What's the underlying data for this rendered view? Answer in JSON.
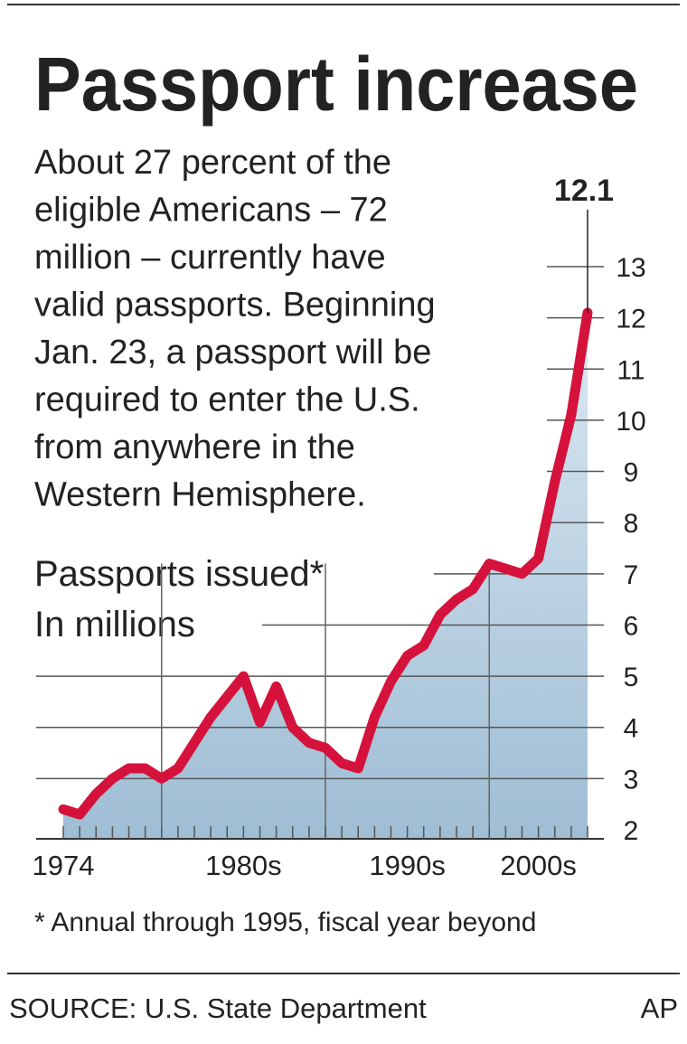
{
  "chart_data": {
    "type": "area",
    "title": "Passport increase",
    "description": [
      "About 27 percent of the",
      "eligible Americans – 72",
      "million – currently have",
      "valid passports. Beginning",
      "Jan. 23, a passport will be",
      "required to enter the U.S.",
      "from anywhere in the",
      "Western Hemisphere."
    ],
    "subtitle": "Passports issued*",
    "y_label": "In millions",
    "x": [
      1974,
      1975,
      1976,
      1977,
      1978,
      1979,
      1980,
      1981,
      1982,
      1983,
      1984,
      1985,
      1986,
      1987,
      1988,
      1989,
      1990,
      1991,
      1992,
      1993,
      1994,
      1995,
      1996,
      1997,
      1998,
      1999,
      2000,
      2001,
      2002,
      2003,
      2004,
      2005,
      2006
    ],
    "values": [
      2.4,
      2.3,
      2.7,
      3.0,
      3.2,
      3.2,
      3.0,
      3.2,
      3.7,
      4.2,
      4.6,
      5.0,
      4.1,
      4.8,
      4.0,
      3.7,
      3.6,
      3.3,
      3.2,
      4.2,
      4.9,
      5.4,
      5.6,
      6.2,
      6.5,
      6.7,
      7.2,
      7.1,
      7.0,
      7.3,
      8.8,
      10.1,
      12.1
    ],
    "color": "#d4123c",
    "area_color": "#b9d1e3",
    "xlim": [
      1974,
      2006
    ],
    "xticks": [
      {
        "value": 1974,
        "label": "1974"
      },
      {
        "value": 1985,
        "label": "1980s"
      },
      {
        "value": 1995,
        "label": "1990s"
      },
      {
        "value": 2003,
        "label": "2000s"
      }
    ],
    "xgrid": [
      1980,
      1990,
      2000
    ],
    "ylim": [
      2,
      13
    ],
    "yticks": [
      2,
      3,
      4,
      5,
      6,
      7,
      8,
      9,
      10,
      11,
      12,
      13
    ],
    "grid": true,
    "footnote": "* Annual through 1995, fiscal year beyond",
    "source": "SOURCE: U.S. State Department",
    "credit": "AP"
  }
}
